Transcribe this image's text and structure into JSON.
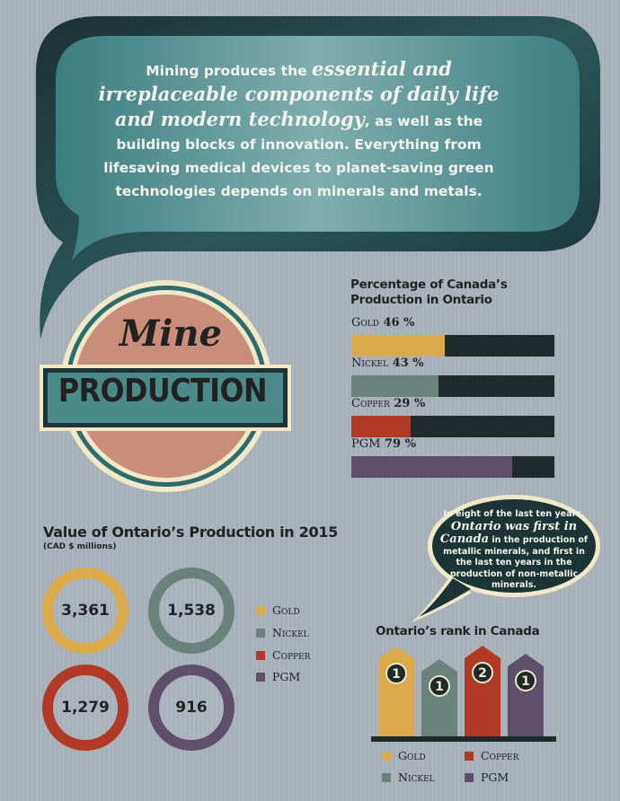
{
  "colors": {
    "gold": "#d9a94a",
    "nickel": "#6b817b",
    "copper": "#b03a26",
    "pgm": "#5f4f6b",
    "teal": "#3f8385",
    "dark": "#1f2a2c",
    "rose": "#c98e7a",
    "cream": "#efe8c9"
  },
  "intro": {
    "p1": "Mining produces the ",
    "em": "essential and irreplaceable components of daily life and modern technology",
    "p2": ", as well as the building blocks of innovation. Everything from lifesaving medical devices to planet-saving green technologies depends on minerals and metals."
  },
  "emblem": {
    "line1": "Mine",
    "line2": "PRODUCTION"
  },
  "legend": {
    "gold": "Gold",
    "nickel": "Nickel",
    "copper": "Copper",
    "pgm": "PGM"
  },
  "callout": {
    "t1": "In eight of the last ten years,",
    "em": "Ontario was first in Canada",
    "t2": "in the production of metallic minerals, and first in the last ten years in the production of non-metallic minerals."
  },
  "chart_data": [
    {
      "type": "bar",
      "title": "Percentage of Canada’s Production in Ontario",
      "categories": [
        "Gold",
        "Nickel",
        "Copper",
        "PGM"
      ],
      "values": [
        46,
        43,
        29,
        79
      ],
      "value_labels": [
        "46 %",
        "43 %",
        "29 %",
        "79 %"
      ],
      "ylim": [
        0,
        100
      ]
    },
    {
      "type": "pie",
      "title": "Value of Ontario’s Production in 2015",
      "subtitle": "(CAD $ millions)",
      "categories": [
        "Gold",
        "Nickel",
        "Copper",
        "PGM"
      ],
      "values": [
        3361,
        1538,
        1279,
        916
      ],
      "value_labels": [
        "3,361",
        "1,538",
        "1,279",
        "916"
      ]
    },
    {
      "type": "bar",
      "title": "Ontario’s rank in Canada",
      "categories": [
        "Gold",
        "Nickel",
        "Copper",
        "PGM"
      ],
      "values": [
        1,
        1,
        2,
        1
      ]
    }
  ]
}
